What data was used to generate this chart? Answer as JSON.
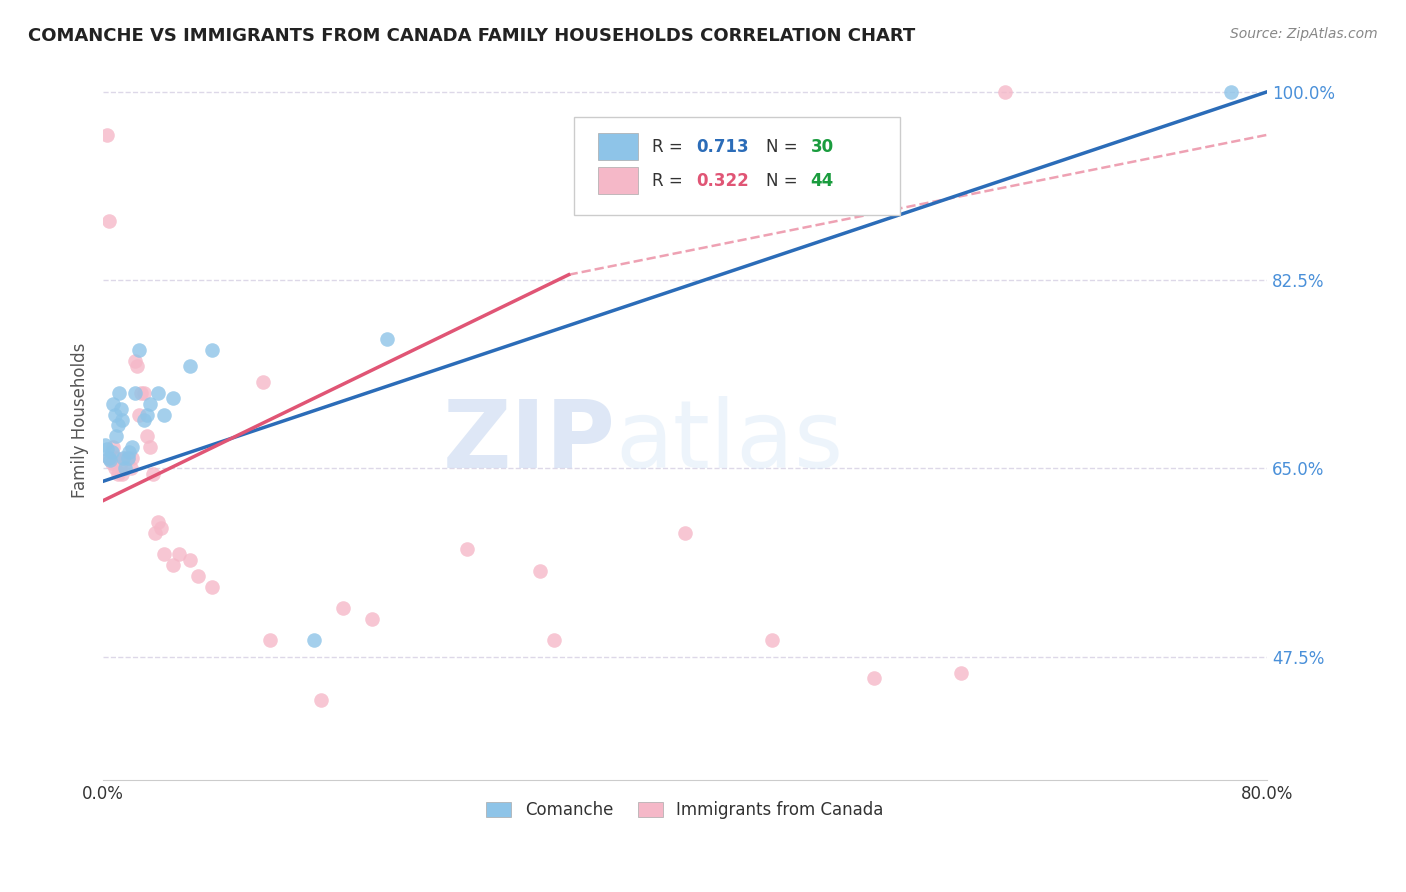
{
  "title": "COMANCHE VS IMMIGRANTS FROM CANADA FAMILY HOUSEHOLDS CORRELATION CHART",
  "source": "Source: ZipAtlas.com",
  "ylabel": "Family Households",
  "xlim": [
    0.0,
    0.8
  ],
  "ylim": [
    0.36,
    1.03
  ],
  "ytick_values": [
    0.475,
    0.65,
    0.825,
    1.0
  ],
  "xtick_values": [
    0.0,
    0.16,
    0.32,
    0.48,
    0.64,
    0.8
  ],
  "watermark_zip": "ZIP",
  "watermark_atlas": "atlas",
  "legend_blue_r": "R = 0.713",
  "legend_blue_n": "N = 30",
  "legend_pink_r": "R = 0.322",
  "legend_pink_n": "N = 44",
  "legend_label_blue": "Comanche",
  "legend_label_pink": "Immigrants from Canada",
  "blue_color": "#8ec4e8",
  "pink_color": "#f5b8c8",
  "blue_line_color": "#2b6cb8",
  "pink_line_color": "#e05575",
  "blue_r_color": "#2b6cb8",
  "pink_r_color": "#e05575",
  "n_color": "#1a9c3e",
  "blue_scatter": [
    [
      0.001,
      0.672
    ],
    [
      0.003,
      0.668
    ],
    [
      0.004,
      0.66
    ],
    [
      0.005,
      0.658
    ],
    [
      0.006,
      0.665
    ],
    [
      0.007,
      0.71
    ],
    [
      0.008,
      0.7
    ],
    [
      0.009,
      0.68
    ],
    [
      0.01,
      0.69
    ],
    [
      0.011,
      0.72
    ],
    [
      0.012,
      0.705
    ],
    [
      0.013,
      0.695
    ],
    [
      0.014,
      0.66
    ],
    [
      0.015,
      0.65
    ],
    [
      0.017,
      0.66
    ],
    [
      0.018,
      0.665
    ],
    [
      0.02,
      0.67
    ],
    [
      0.022,
      0.72
    ],
    [
      0.025,
      0.76
    ],
    [
      0.028,
      0.695
    ],
    [
      0.03,
      0.7
    ],
    [
      0.032,
      0.71
    ],
    [
      0.038,
      0.72
    ],
    [
      0.042,
      0.7
    ],
    [
      0.048,
      0.715
    ],
    [
      0.06,
      0.745
    ],
    [
      0.075,
      0.76
    ],
    [
      0.145,
      0.49
    ],
    [
      0.195,
      0.77
    ],
    [
      0.775,
      1.0
    ]
  ],
  "pink_scatter": [
    [
      0.003,
      0.96
    ],
    [
      0.004,
      0.88
    ],
    [
      0.004,
      0.66
    ],
    [
      0.006,
      0.655
    ],
    [
      0.007,
      0.67
    ],
    [
      0.008,
      0.65
    ],
    [
      0.009,
      0.66
    ],
    [
      0.01,
      0.645
    ],
    [
      0.012,
      0.655
    ],
    [
      0.013,
      0.645
    ],
    [
      0.015,
      0.66
    ],
    [
      0.017,
      0.66
    ],
    [
      0.019,
      0.65
    ],
    [
      0.02,
      0.66
    ],
    [
      0.022,
      0.75
    ],
    [
      0.023,
      0.745
    ],
    [
      0.025,
      0.7
    ],
    [
      0.026,
      0.72
    ],
    [
      0.028,
      0.72
    ],
    [
      0.03,
      0.68
    ],
    [
      0.032,
      0.67
    ],
    [
      0.034,
      0.645
    ],
    [
      0.036,
      0.59
    ],
    [
      0.038,
      0.6
    ],
    [
      0.04,
      0.595
    ],
    [
      0.042,
      0.57
    ],
    [
      0.048,
      0.56
    ],
    [
      0.052,
      0.57
    ],
    [
      0.06,
      0.565
    ],
    [
      0.065,
      0.55
    ],
    [
      0.075,
      0.54
    ],
    [
      0.11,
      0.73
    ],
    [
      0.115,
      0.49
    ],
    [
      0.15,
      0.435
    ],
    [
      0.165,
      0.52
    ],
    [
      0.185,
      0.51
    ],
    [
      0.25,
      0.575
    ],
    [
      0.3,
      0.555
    ],
    [
      0.31,
      0.49
    ],
    [
      0.4,
      0.59
    ],
    [
      0.46,
      0.49
    ],
    [
      0.53,
      0.455
    ],
    [
      0.59,
      0.46
    ],
    [
      0.62,
      1.0
    ]
  ],
  "blue_line": [
    0.0,
    0.8,
    0.638,
    1.0
  ],
  "pink_solid_line": [
    0.0,
    0.32,
    0.62,
    0.83
  ],
  "pink_dashed_line": [
    0.32,
    0.8,
    0.83,
    0.96
  ],
  "background_color": "#ffffff",
  "grid_color": "#ddd8e8",
  "grid_style": "--"
}
